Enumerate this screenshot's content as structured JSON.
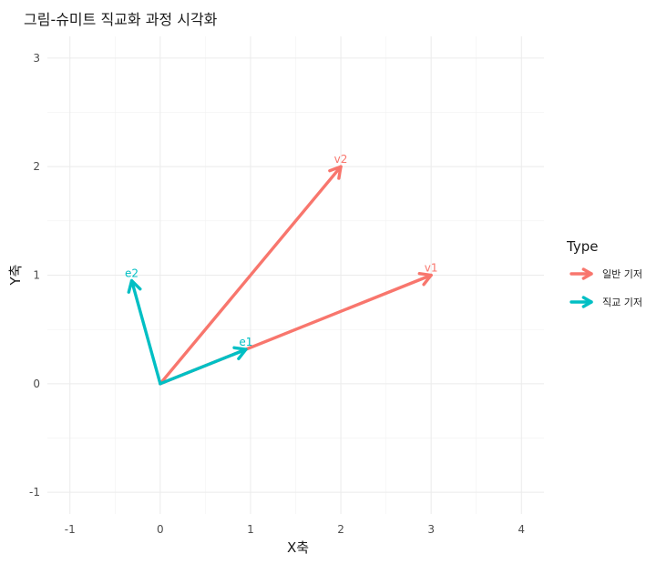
{
  "chart_data": {
    "type": "vector",
    "title": "그림-슈미트 직교화 과정 시각화",
    "xlabel": "X축",
    "ylabel": "Y축",
    "xlim": [
      -1.25,
      4.25
    ],
    "ylim": [
      -1.2,
      3.2
    ],
    "x_ticks": [
      -1,
      0,
      1,
      2,
      3,
      4
    ],
    "y_ticks": [
      -1,
      0,
      1,
      2,
      3
    ],
    "grid": true,
    "legend": {
      "title": "Type",
      "position": "right"
    },
    "series": [
      {
        "name": "일반 기저",
        "color": "#F8766D",
        "vectors": [
          {
            "label": "v1",
            "x0": 0,
            "y0": 0,
            "x1": 3,
            "y1": 1
          },
          {
            "label": "v2",
            "x0": 0,
            "y0": 0,
            "x1": 2,
            "y1": 2
          }
        ]
      },
      {
        "name": "직교 기저",
        "color": "#00BFC4",
        "vectors": [
          {
            "label": "e1",
            "x0": 0,
            "y0": 0,
            "x1": 0.949,
            "y1": 0.316
          },
          {
            "label": "e2",
            "x0": 0,
            "y0": 0,
            "x1": -0.316,
            "y1": 0.949
          }
        ]
      }
    ]
  }
}
